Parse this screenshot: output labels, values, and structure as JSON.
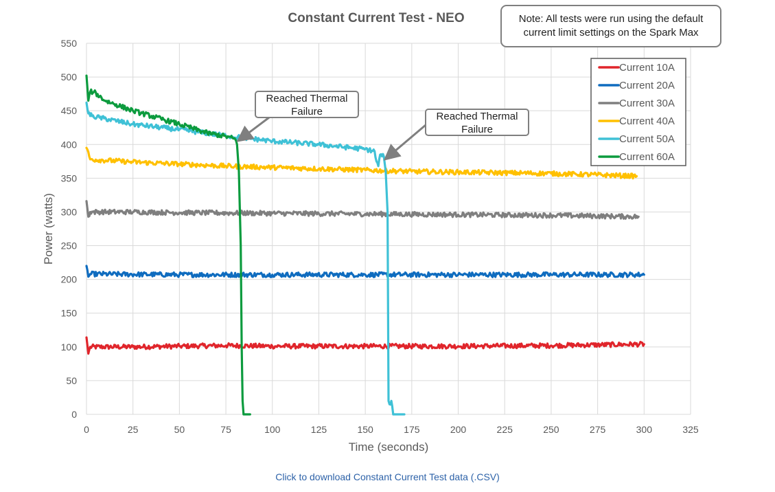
{
  "chart_data": {
    "type": "line",
    "title": "Constant Current Test - NEO",
    "xlabel": "Time (seconds)",
    "ylabel": "Power (watts)",
    "xlim": [
      0,
      325
    ],
    "ylim": [
      0,
      550
    ],
    "xticks": [
      0,
      25,
      50,
      75,
      100,
      125,
      150,
      175,
      200,
      225,
      250,
      275,
      300,
      325
    ],
    "yticks": [
      0,
      50,
      100,
      150,
      200,
      250,
      300,
      350,
      400,
      450,
      500,
      550
    ],
    "grid": true,
    "legend_position": "top-right",
    "series": [
      {
        "name": "Current 10A",
        "color": "#e0252b",
        "points": [
          [
            0,
            114
          ],
          [
            1,
            90
          ],
          [
            2,
            100
          ],
          [
            25,
            100
          ],
          [
            50,
            101
          ],
          [
            75,
            102
          ],
          [
            100,
            101
          ],
          [
            150,
            101
          ],
          [
            200,
            101
          ],
          [
            250,
            102
          ],
          [
            300,
            104
          ]
        ]
      },
      {
        "name": "Current 20A",
        "color": "#0f6cbf",
        "points": [
          [
            0,
            220
          ],
          [
            1,
            204
          ],
          [
            2,
            208
          ],
          [
            50,
            207
          ],
          [
            100,
            207
          ],
          [
            150,
            207
          ],
          [
            200,
            207
          ],
          [
            250,
            207
          ],
          [
            300,
            207
          ]
        ]
      },
      {
        "name": "Current 30A",
        "color": "#7f7f7f",
        "points": [
          [
            0,
            316
          ],
          [
            1,
            293
          ],
          [
            2,
            300
          ],
          [
            25,
            300
          ],
          [
            50,
            299
          ],
          [
            100,
            298
          ],
          [
            150,
            297
          ],
          [
            200,
            296
          ],
          [
            250,
            295
          ],
          [
            297,
            293
          ]
        ]
      },
      {
        "name": "Current 40A",
        "color": "#ffc000",
        "points": [
          [
            0,
            395
          ],
          [
            2,
            378
          ],
          [
            25,
            374
          ],
          [
            50,
            371
          ],
          [
            75,
            368
          ],
          [
            100,
            366
          ],
          [
            125,
            364
          ],
          [
            150,
            362
          ],
          [
            175,
            360
          ],
          [
            200,
            359
          ],
          [
            225,
            358
          ],
          [
            250,
            357
          ],
          [
            275,
            355
          ],
          [
            296,
            353
          ]
        ]
      },
      {
        "name": "Current 50A",
        "color": "#3fc1d6",
        "points": [
          [
            0,
            462
          ],
          [
            1,
            446
          ],
          [
            3,
            442
          ],
          [
            25,
            430
          ],
          [
            50,
            422
          ],
          [
            75,
            413
          ],
          [
            100,
            405
          ],
          [
            125,
            400
          ],
          [
            150,
            393
          ],
          [
            155,
            390
          ],
          [
            156,
            375
          ],
          [
            157,
            368
          ],
          [
            158,
            385
          ],
          [
            160,
            382
          ],
          [
            161,
            360
          ],
          [
            162,
            300
          ],
          [
            162.5,
            20
          ],
          [
            163,
            15
          ],
          [
            164,
            20
          ],
          [
            165,
            0
          ],
          [
            171,
            0
          ]
        ]
      },
      {
        "name": "Current 60A",
        "color": "#0c9b3e",
        "points": [
          [
            0,
            502
          ],
          [
            1,
            465
          ],
          [
            2,
            478
          ],
          [
            4,
            478
          ],
          [
            10,
            465
          ],
          [
            25,
            450
          ],
          [
            50,
            430
          ],
          [
            65,
            417
          ],
          [
            75,
            412
          ],
          [
            80,
            408
          ],
          [
            81,
            400
          ],
          [
            82,
            360
          ],
          [
            83,
            250
          ],
          [
            83.5,
            100
          ],
          [
            84,
            20
          ],
          [
            84.5,
            0
          ],
          [
            88,
            0
          ]
        ]
      }
    ],
    "annotations": [
      {
        "text_lines": [
          "Reached Thermal",
          "Failure"
        ],
        "points_to": [
          82,
          415
        ]
      },
      {
        "text_lines": [
          "Reached Thermal",
          "Failure"
        ],
        "points_to": [
          161,
          388
        ]
      }
    ],
    "note_lines": [
      "Note: All tests were run using the default",
      "current limit settings on the Spark Max"
    ]
  },
  "download_link": "Click to download Constant Current Test data (.CSV)"
}
